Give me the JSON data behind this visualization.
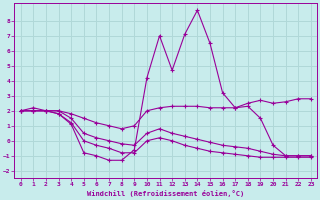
{
  "xlabel": "Windchill (Refroidissement éolien,°C)",
  "background_color": "#c8ecec",
  "grid_color": "#b0d8d8",
  "line_color": "#990099",
  "xlim": [
    -0.5,
    23.5
  ],
  "ylim": [
    -2.5,
    9.2
  ],
  "yticks": [
    -2,
    -1,
    0,
    1,
    2,
    3,
    4,
    5,
    6,
    7,
    8
  ],
  "xticks": [
    0,
    1,
    2,
    3,
    4,
    5,
    6,
    7,
    8,
    9,
    10,
    11,
    12,
    13,
    14,
    15,
    16,
    17,
    18,
    19,
    20,
    21,
    22,
    23
  ],
  "lines": [
    {
      "x": [
        0,
        1,
        2,
        3,
        4,
        5,
        6,
        7,
        8,
        9,
        10,
        11,
        12,
        13,
        14,
        15,
        16,
        17,
        18,
        19,
        20,
        21,
        22,
        23
      ],
      "y": [
        2.0,
        2.2,
        2.0,
        1.8,
        1.1,
        -0.8,
        -1.0,
        -1.3,
        -1.3,
        -0.6,
        4.2,
        7.0,
        4.7,
        7.1,
        8.7,
        6.5,
        3.2,
        2.2,
        2.3,
        1.5,
        -0.3,
        -1.0,
        -1.0,
        -1.0
      ]
    },
    {
      "x": [
        0,
        1,
        2,
        3,
        4,
        5,
        6,
        7,
        8,
        9,
        10,
        11,
        12,
        13,
        14,
        15,
        16,
        17,
        18,
        19,
        20,
        21,
        22,
        23
      ],
      "y": [
        2.0,
        2.0,
        2.0,
        2.0,
        1.8,
        1.5,
        1.2,
        1.0,
        0.8,
        1.0,
        2.0,
        2.2,
        2.3,
        2.3,
        2.3,
        2.2,
        2.2,
        2.2,
        2.5,
        2.7,
        2.5,
        2.6,
        2.8,
        2.8
      ]
    },
    {
      "x": [
        0,
        1,
        2,
        3,
        4,
        5,
        6,
        7,
        8,
        9,
        10,
        11,
        12,
        13,
        14,
        15,
        16,
        17,
        18,
        19,
        20,
        21,
        22,
        23
      ],
      "y": [
        2.0,
        2.0,
        2.0,
        2.0,
        1.5,
        0.5,
        0.2,
        0.0,
        -0.2,
        -0.3,
        0.5,
        0.8,
        0.5,
        0.3,
        0.1,
        -0.1,
        -0.3,
        -0.4,
        -0.5,
        -0.7,
        -0.9,
        -1.0,
        -1.0,
        -1.0
      ]
    },
    {
      "x": [
        0,
        1,
        2,
        3,
        4,
        5,
        6,
        7,
        8,
        9,
        10,
        11,
        12,
        13,
        14,
        15,
        16,
        17,
        18,
        19,
        20,
        21,
        22,
        23
      ],
      "y": [
        2.0,
        2.0,
        2.0,
        1.8,
        1.2,
        0.0,
        -0.3,
        -0.5,
        -0.8,
        -0.8,
        0.0,
        0.2,
        0.0,
        -0.3,
        -0.5,
        -0.7,
        -0.8,
        -0.9,
        -1.0,
        -1.1,
        -1.1,
        -1.1,
        -1.1,
        -1.1
      ]
    }
  ]
}
